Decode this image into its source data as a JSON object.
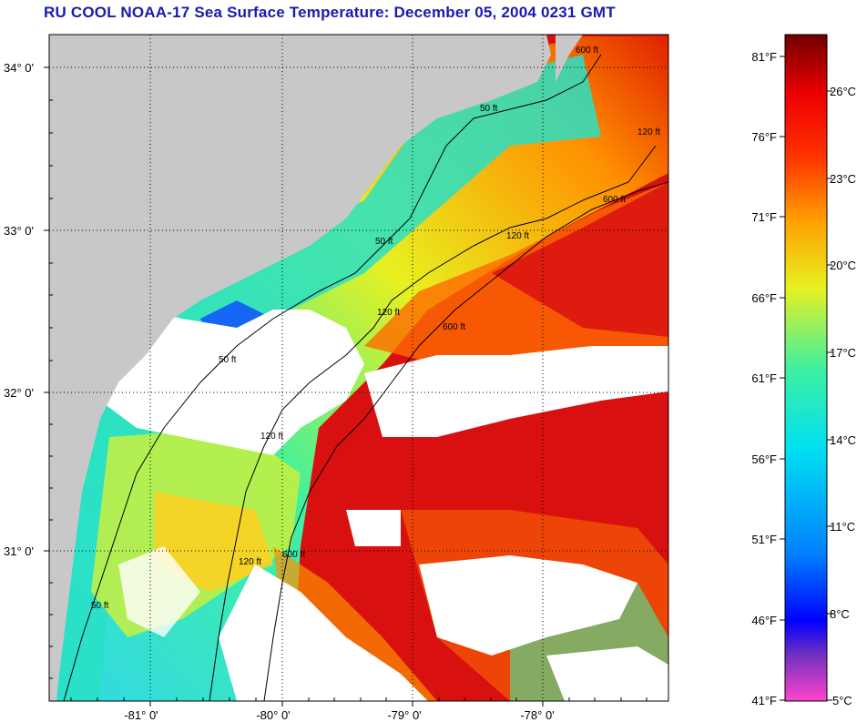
{
  "title": "RU COOL  NOAA-17  Sea Surface Temperature:  December 05, 2004 0231 GMT",
  "map": {
    "lat_ticks": [
      "34° 0'",
      "33° 0'",
      "32° 0'",
      "31° 0'"
    ],
    "lon_ticks": [
      "-81° 0'",
      "-80° 0'",
      "-79° 0'",
      "-78° 0'"
    ],
    "contour_labels": [
      "50 ft",
      "50 ft",
      "50 ft",
      "50 ft",
      "120 ft",
      "120 ft",
      "120 ft",
      "120 ft",
      "600 ft",
      "600 ft",
      "600 ft",
      "600 ft",
      "120 ft"
    ],
    "colors": {
      "land": "#c8c8c8",
      "cloud": "#ffffff",
      "nearshore": "#29e0c6",
      "shelf": "#f0f020",
      "gulf_stream": "#d81010"
    }
  },
  "colorbar": {
    "fahrenheit_labels": [
      "81°F",
      "76°F",
      "71°F",
      "66°F",
      "61°F",
      "56°F",
      "51°F",
      "46°F",
      "41°F"
    ],
    "celsius_labels": [
      "26°C",
      "23°C",
      "20°C",
      "17°C",
      "14°C",
      "11°C",
      "8°C",
      "5°C"
    ],
    "stops": [
      "#ff44cc",
      "#7030c0",
      "#0000ff",
      "#0080ff",
      "#00e0f0",
      "#40f0a0",
      "#e8f020",
      "#ffa000",
      "#ff3000",
      "#ee0000",
      "#700000"
    ]
  }
}
